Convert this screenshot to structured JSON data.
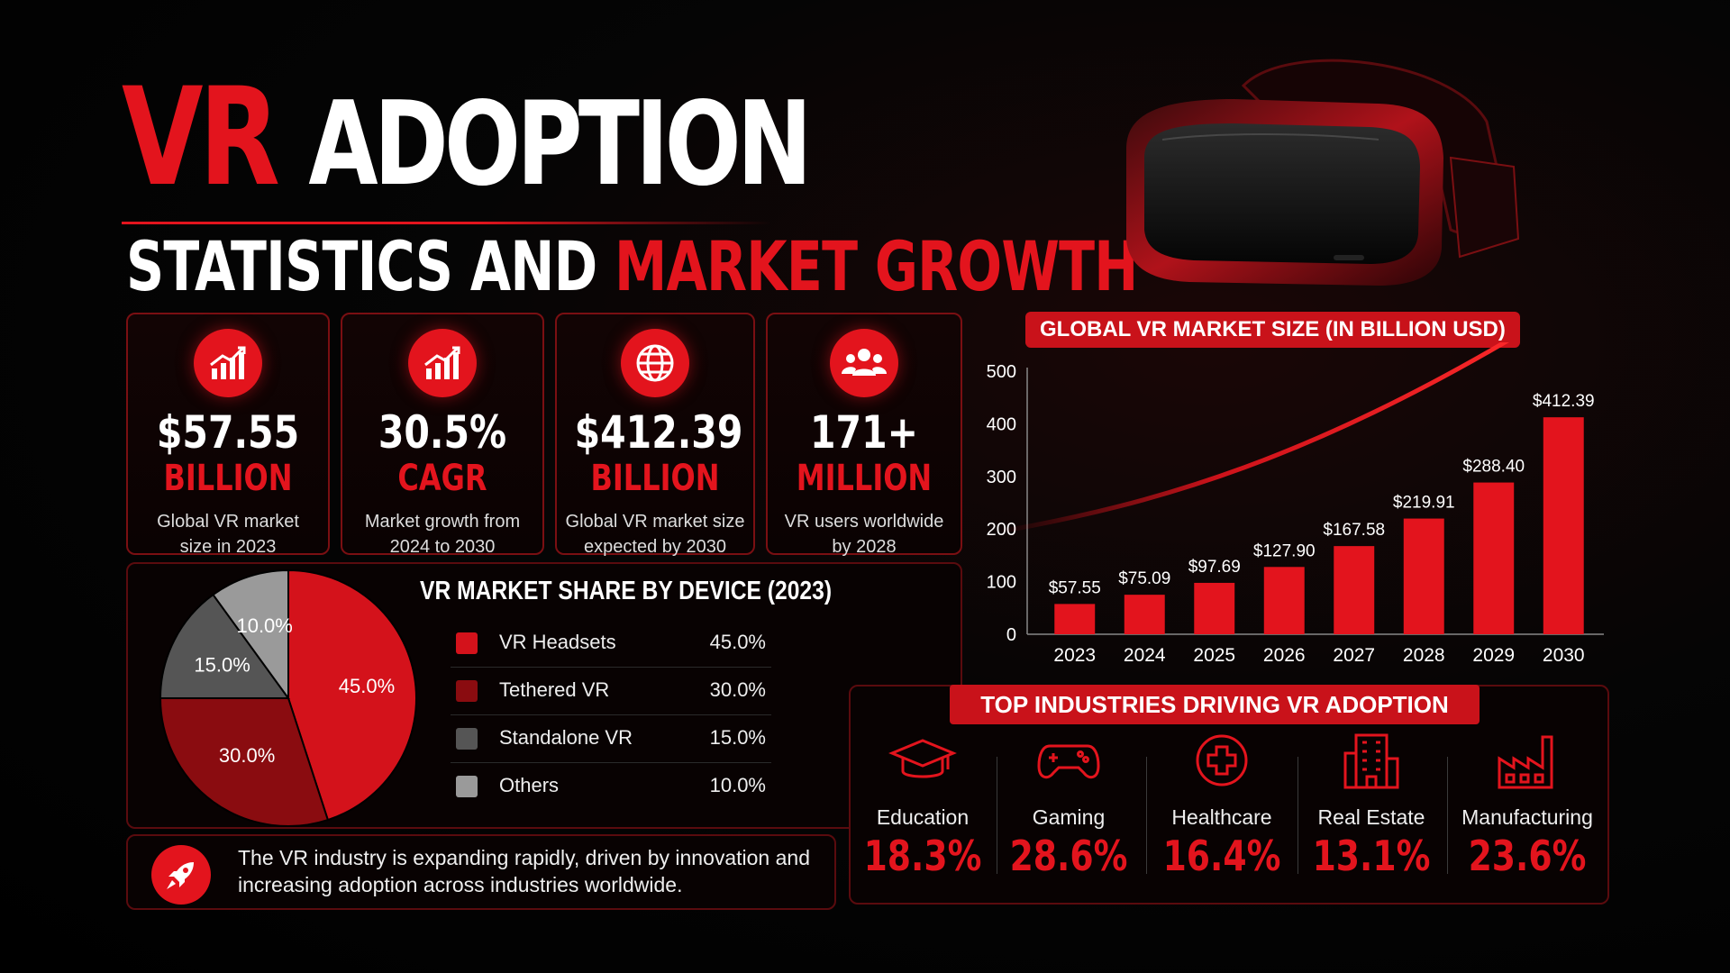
{
  "title": {
    "part1_red": "VR",
    "part1_white": "ADOPTION",
    "part2_white": "STATISTICS AND",
    "part2_red": "MARKET GROWTH"
  },
  "stats": [
    {
      "value": "$57.55",
      "unit": "BILLION",
      "desc1": "Global VR market",
      "desc2": "size in 2023",
      "icon": "growth-chart-icon"
    },
    {
      "value": "30.5%",
      "unit": "CAGR",
      "desc1": "Market growth from",
      "desc2": "2024 to 2030",
      "icon": "growth-chart-icon"
    },
    {
      "value": "$412.39",
      "unit": "BILLION",
      "desc1": "Global VR market size",
      "desc2": "expected by 2030",
      "icon": "globe-icon"
    },
    {
      "value": "171+",
      "unit": "MILLION",
      "desc1": "VR users worldwide",
      "desc2": "by 2028",
      "icon": "users-icon"
    }
  ],
  "pie": {
    "title": "VR MARKET SHARE BY DEVICE (2023)",
    "items": [
      {
        "label": "VR Headsets",
        "value": "45.0%",
        "pct": 45.0,
        "color": "#d4121b"
      },
      {
        "label": "Tethered VR",
        "value": "30.0%",
        "pct": 30.0,
        "color": "#8a0c10"
      },
      {
        "label": "Standalone VR",
        "value": "15.0%",
        "pct": 15.0,
        "color": "#555555"
      },
      {
        "label": "Others",
        "value": "10.0%",
        "pct": 10.0,
        "color": "#9a9a9a"
      }
    ]
  },
  "note": {
    "text": "The VR industry is expanding rapidly, driven by innovation and increasing adoption across industries worldwide.",
    "icon": "rocket-icon"
  },
  "chart_data": {
    "type": "bar",
    "title": "GLOBAL VR MARKET SIZE (IN BILLION USD)",
    "categories": [
      "2023",
      "2024",
      "2025",
      "2026",
      "2027",
      "2028",
      "2029",
      "2030"
    ],
    "values": [
      57.55,
      75.09,
      97.69,
      127.9,
      167.58,
      219.91,
      288.4,
      412.39
    ],
    "value_labels": [
      "$57.55",
      "$75.09",
      "$97.69",
      "$127.90",
      "$167.58",
      "$219.91",
      "$288.40",
      "$412.39"
    ],
    "ylim": [
      0,
      500
    ],
    "yticks": [
      0,
      100,
      200,
      300,
      400,
      500
    ],
    "bar_color": "#e3141d",
    "xlabel": "",
    "ylabel": ""
  },
  "industries": {
    "title": "TOP INDUSTRIES DRIVING VR ADOPTION",
    "items": [
      {
        "name": "Education",
        "value": "18.3%",
        "icon": "graduation-cap-icon"
      },
      {
        "name": "Gaming",
        "value": "28.6%",
        "icon": "gamepad-icon"
      },
      {
        "name": "Healthcare",
        "value": "16.4%",
        "icon": "medical-cross-icon"
      },
      {
        "name": "Real Estate",
        "value": "13.1%",
        "icon": "building-icon"
      },
      {
        "name": "Manufacturing",
        "value": "23.6%",
        "icon": "factory-icon"
      }
    ]
  },
  "colors": {
    "accent": "#e3141d",
    "background": "#000000"
  }
}
